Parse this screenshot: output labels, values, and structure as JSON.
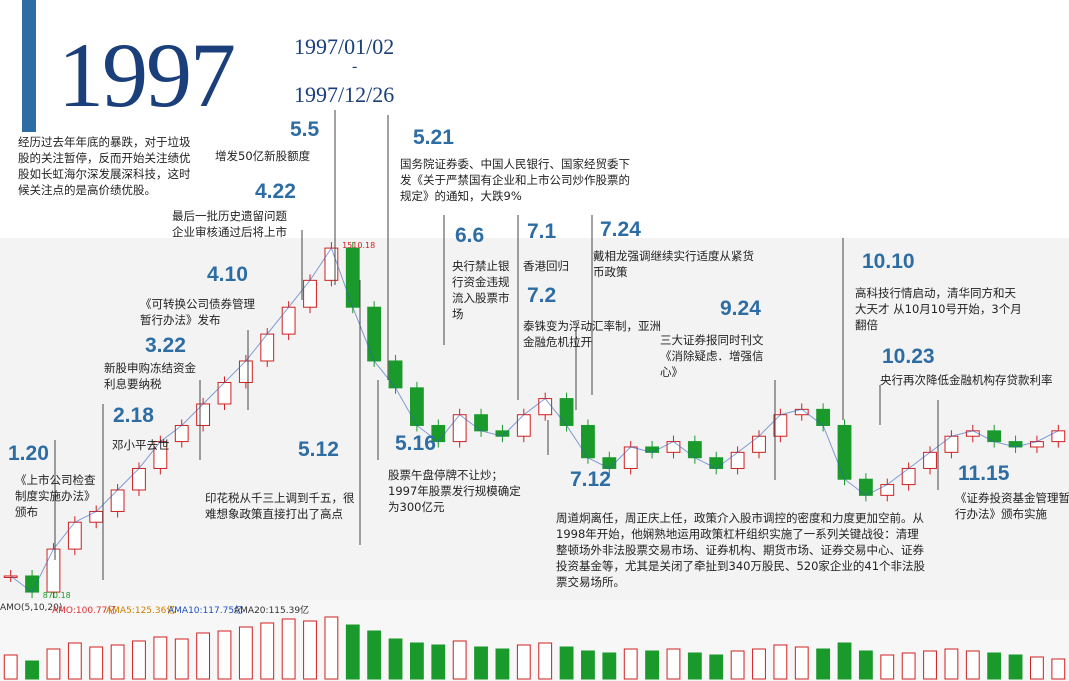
{
  "header": {
    "year": "1997",
    "start": "1997/01/02",
    "dash": "-",
    "end": "1997/12/26"
  },
  "intro": "经历过去年年底的暴跌，对于垃圾股的关注暂停，反而开始关注绩优股如长虹海尔深发展深科技，这时候关注点的是高价绩优股。",
  "events": [
    {
      "date": "1.20",
      "text": "《上市公司检查制度实施办法》颁布"
    },
    {
      "date": "2.18",
      "text": "邓小平去世"
    },
    {
      "date": "3.22",
      "text": "新股申购冻结资金利息要纳税"
    },
    {
      "date": "4.10",
      "text": "《可转换公司债券管理暂行办法》发布"
    },
    {
      "date": "4.22",
      "text": "最后一批历史遗留问题企业审核通过后将上市"
    },
    {
      "date": "5.5",
      "text": "增发50亿新股额度"
    },
    {
      "date": "5.12",
      "text": "印花税从千三上调到千五，很难想象政策直接打出了高点"
    },
    {
      "date": "5.16",
      "text": "股票午盘停牌不让炒；1997年股票发行规模确定为300亿元"
    },
    {
      "date": "5.21",
      "text": "国务院证券委、中国人民银行、国家经贸委下发《关于严禁国有企业和上市公司炒作股票的规定》的通知，大跌9%"
    },
    {
      "date": "6.6",
      "text": "央行禁止银行资金违规流入股票市场"
    },
    {
      "date": "7.1",
      "text": "香港回归"
    },
    {
      "date": "7.2",
      "text": "泰铢变为浮动汇率制，亚洲金融危机拉开"
    },
    {
      "date": "7.12",
      "text": "周道炯离任，周正庆上任，政策介入股市调控的密度和力度更加空前。从1998年开始，他娴熟地运用政策杠杆组织实施了一系列关键战役：清理整顿场外非法股票交易市场、证券机构、期货市场、证券交易中心、证券投资基金等，尤其是关闭了牵扯到340万股民、520家企业的41个非法股票交易场所。"
    },
    {
      "date": "7.24",
      "text": "戴相龙强调继续实行适度从紧货币政策"
    },
    {
      "date": "9.24",
      "text": "三大证券报同时刊文《消除疑虑．增强信心》"
    },
    {
      "date": "10.10",
      "text": "高科技行情启动，清华同方和天大天才 从10月10号开始，3个月翻倍"
    },
    {
      "date": "10.23",
      "text": "央行再次降低金融机构存贷款利率"
    },
    {
      "date": "11.15",
      "text": "《证券投资基金管理暂行办法》颁布实施"
    }
  ],
  "chart_data": {
    "type": "price",
    "high_label": "1510.18",
    "high": 1510.18,
    "low_label": "870.18",
    "low": 870.18,
    "values": [
      900,
      870,
      950,
      1000,
      1020,
      1060,
      1100,
      1150,
      1180,
      1220,
      1260,
      1300,
      1350,
      1400,
      1450,
      1510,
      1400,
      1300,
      1250,
      1180,
      1150,
      1200,
      1170,
      1160,
      1200,
      1230,
      1180,
      1120,
      1100,
      1140,
      1130,
      1150,
      1120,
      1100,
      1130,
      1160,
      1200,
      1210,
      1180,
      1080,
      1050,
      1070,
      1100,
      1130,
      1160,
      1170,
      1150,
      1140,
      1150,
      1170
    ],
    "volume_legend": [
      {
        "name": "AMO(5,10,20)",
        "color": "#333333"
      },
      {
        "name": "AMO:100.77亿",
        "color": "#e03030"
      },
      {
        "name": "AMA5:125.36亿",
        "color": "#d08000"
      },
      {
        "name": "AMA10:117.75亿",
        "color": "#2050c0"
      },
      {
        "name": "AMA20:115.39亿",
        "color": "#333333"
      }
    ],
    "volume": [
      120,
      90,
      150,
      180,
      160,
      170,
      190,
      210,
      200,
      230,
      240,
      260,
      280,
      300,
      290,
      310,
      270,
      240,
      200,
      180,
      170,
      190,
      160,
      150,
      170,
      180,
      160,
      140,
      130,
      150,
      140,
      150,
      130,
      120,
      140,
      150,
      170,
      160,
      150,
      180,
      140,
      120,
      130,
      140,
      150,
      140,
      130,
      120,
      110,
      100
    ]
  }
}
